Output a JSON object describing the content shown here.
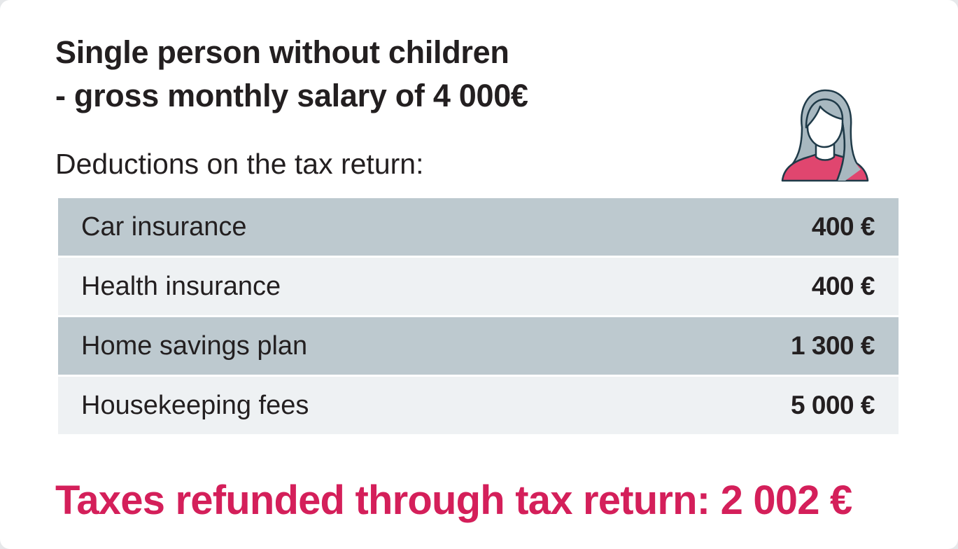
{
  "header": {
    "title_line1": "Single person without children",
    "title_line2": "- gross monthly salary of 4 000€",
    "subtitle": "Deductions on the tax return:"
  },
  "avatar": {
    "icon": "woman-avatar-icon",
    "colors": {
      "hair": "#a8b8c0",
      "outline": "#1f3a48",
      "shirt": "#e0466f",
      "skin": "#ffffff"
    }
  },
  "deductions": [
    {
      "label": "Car insurance",
      "value": "400 €"
    },
    {
      "label": "Health insurance",
      "value": "400 €"
    },
    {
      "label": "Home savings plan",
      "value": "1 300 €"
    },
    {
      "label": "Housekeeping fees",
      "value": "5 000 €"
    }
  ],
  "result": {
    "text": "Taxes refunded through tax return: 2 002 €"
  },
  "colors": {
    "accent": "#d41f5a",
    "row_dark": "#bdc9cf",
    "row_light": "#eef1f3",
    "text": "#231f20"
  }
}
